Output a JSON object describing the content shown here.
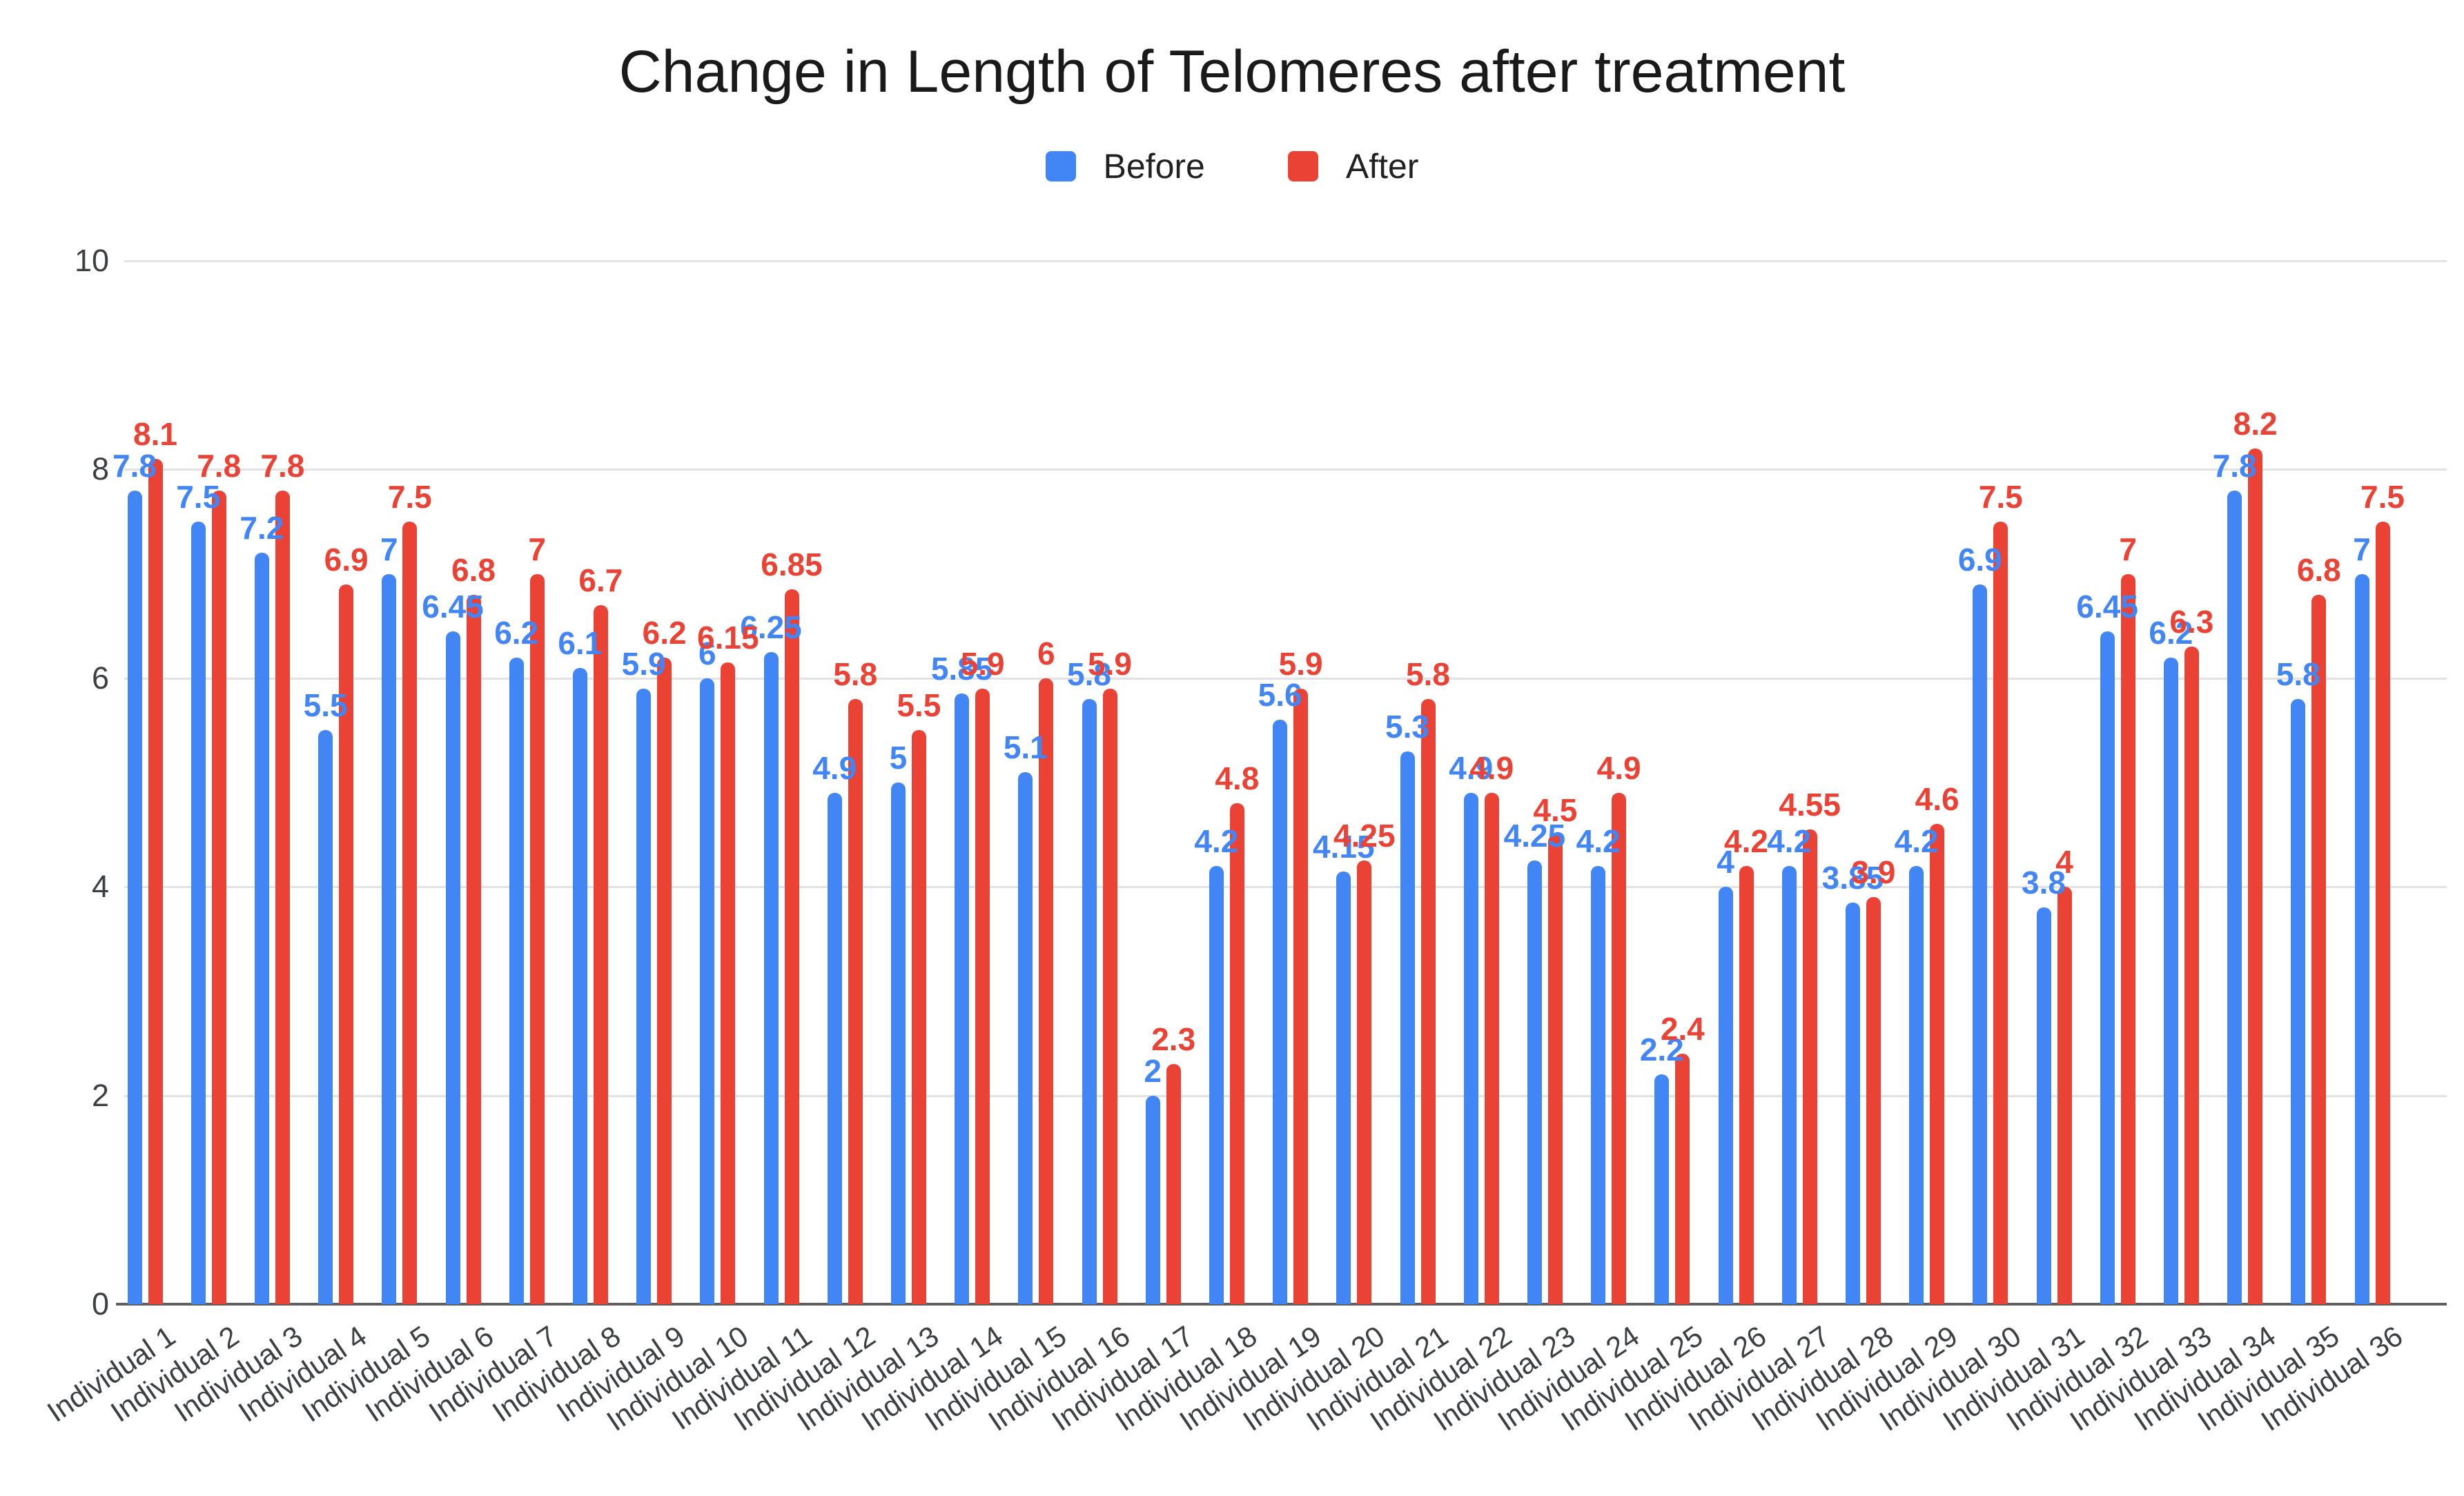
{
  "page": {
    "background": "#ffffff"
  },
  "chart_data": {
    "type": "bar",
    "title": "Change in Length of Telomeres after treatment",
    "xlabel": "",
    "ylabel": "",
    "ylim": [
      0,
      10
    ],
    "yticks": [
      10,
      8,
      6,
      4,
      2,
      0
    ],
    "grid": true,
    "legend_position": "top",
    "data_labels": true,
    "axis_text_color": "#3c4043",
    "gridline_color": "#e2e2e2",
    "baseline_color": "#5f5f5f",
    "categories": [
      "Individual 1",
      "Individual 2",
      "Individual 3",
      "Individual 4",
      "Individual 5",
      "Individual 6",
      "Individual 7",
      "Individual 8",
      "Individual 9",
      "Individual 10",
      "Individual 11",
      "Individual 12",
      "Individual 13",
      "Individual 14",
      "Individual 15",
      "Individual 16",
      "Individual 17",
      "Individual 18",
      "Individual 19",
      "Individual 20",
      "Individual 21",
      "Individual 22",
      "Individual 23",
      "Individual 24",
      "Individual 25",
      "Individual 26",
      "Individual 27",
      "Individual 28",
      "Individual 29",
      "Individual 30",
      "Individual 31",
      "Individual 32",
      "Individual 33",
      "Individual 34",
      "Individual 35",
      "Individual 36"
    ],
    "series": [
      {
        "name": "Before",
        "color": "#4285F4",
        "values": [
          7.8,
          7.5,
          7.2,
          5.5,
          7,
          6.45,
          6.2,
          6.1,
          5.9,
          6,
          6.25,
          4.9,
          5,
          5.85,
          5.1,
          5.8,
          2,
          4.2,
          5.6,
          4.15,
          5.3,
          4.9,
          4.25,
          4.2,
          2.2,
          4,
          4.2,
          3.85,
          4.2,
          6.9,
          3.8,
          6.45,
          6.2,
          7.8,
          5.8,
          7
        ]
      },
      {
        "name": "After",
        "color": "#EA4335",
        "values": [
          8.1,
          7.8,
          7.8,
          6.9,
          7.5,
          6.8,
          7,
          6.7,
          6.2,
          6.15,
          6.85,
          5.8,
          5.5,
          5.9,
          6,
          5.9,
          2.3,
          4.8,
          5.9,
          4.25,
          5.8,
          4.9,
          4.5,
          4.9,
          2.4,
          4.2,
          4.55,
          3.9,
          4.6,
          7.5,
          4,
          7,
          6.3,
          8.2,
          6.8,
          7.5
        ]
      }
    ]
  }
}
